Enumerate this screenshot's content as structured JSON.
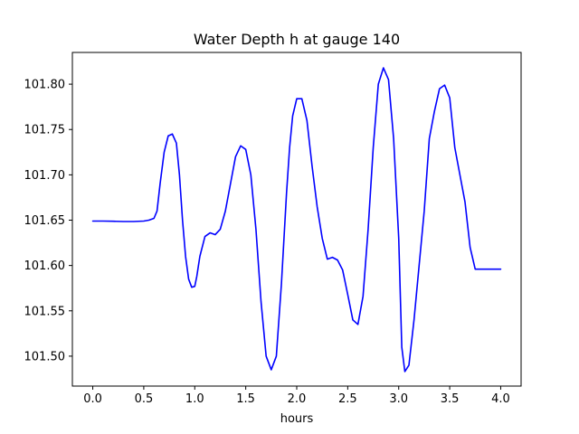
{
  "chart_data": {
    "type": "line",
    "title": "Water Depth h at gauge 140",
    "xlabel": "hours",
    "ylabel": "",
    "xlim": [
      -0.2,
      4.2
    ],
    "ylim": [
      101.467,
      101.835
    ],
    "xticks": [
      0.0,
      0.5,
      1.0,
      1.5,
      2.0,
      2.5,
      3.0,
      3.5,
      4.0
    ],
    "xtick_labels": [
      "0.0",
      "0.5",
      "1.0",
      "1.5",
      "2.0",
      "2.5",
      "3.0",
      "3.5",
      "4.0"
    ],
    "yticks": [
      101.5,
      101.55,
      101.6,
      101.65,
      101.7,
      101.75,
      101.8
    ],
    "ytick_labels": [
      "101.50",
      "101.55",
      "101.60",
      "101.65",
      "101.70",
      "101.75",
      "101.80"
    ],
    "grid": false,
    "series": [
      {
        "color": "#0000ff",
        "x": [
          0.0,
          0.1,
          0.2,
          0.3,
          0.4,
          0.5,
          0.55,
          0.6,
          0.63,
          0.66,
          0.7,
          0.74,
          0.78,
          0.82,
          0.85,
          0.88,
          0.91,
          0.94,
          0.97,
          1.0,
          1.02,
          1.05,
          1.1,
          1.15,
          1.2,
          1.25,
          1.3,
          1.35,
          1.4,
          1.45,
          1.5,
          1.55,
          1.6,
          1.65,
          1.7,
          1.75,
          1.8,
          1.85,
          1.9,
          1.93,
          1.96,
          2.0,
          2.05,
          2.1,
          2.15,
          2.2,
          2.25,
          2.3,
          2.35,
          2.4,
          2.45,
          2.5,
          2.55,
          2.6,
          2.65,
          2.7,
          2.75,
          2.8,
          2.85,
          2.9,
          2.95,
          3.0,
          3.03,
          3.06,
          3.1,
          3.15,
          3.2,
          3.25,
          3.3,
          3.35,
          3.4,
          3.45,
          3.5,
          3.55,
          3.6,
          3.65,
          3.7,
          3.75,
          3.8,
          3.85,
          3.9,
          3.95,
          4.0
        ],
        "y": [
          101.649,
          101.649,
          101.6488,
          101.6485,
          101.6485,
          101.649,
          101.65,
          101.652,
          101.66,
          101.69,
          101.725,
          101.743,
          101.745,
          101.735,
          101.7,
          101.65,
          101.61,
          101.585,
          101.576,
          101.577,
          101.588,
          101.61,
          101.632,
          101.636,
          101.634,
          101.64,
          101.66,
          101.69,
          101.72,
          101.732,
          101.728,
          101.7,
          101.64,
          101.56,
          101.5,
          101.485,
          101.5,
          101.58,
          101.68,
          101.73,
          101.765,
          101.784,
          101.784,
          101.76,
          101.71,
          101.665,
          101.63,
          101.607,
          101.609,
          101.606,
          101.595,
          101.568,
          101.54,
          101.535,
          101.566,
          101.64,
          101.73,
          101.8,
          101.818,
          101.805,
          101.74,
          101.63,
          101.51,
          101.483,
          101.49,
          101.54,
          101.6,
          101.66,
          101.74,
          101.77,
          101.795,
          101.799,
          101.785,
          101.73,
          101.7,
          101.67,
          101.62,
          101.596,
          101.596,
          101.596,
          101.596,
          101.596,
          101.596
        ],
        "values_note": ""
      }
    ]
  }
}
